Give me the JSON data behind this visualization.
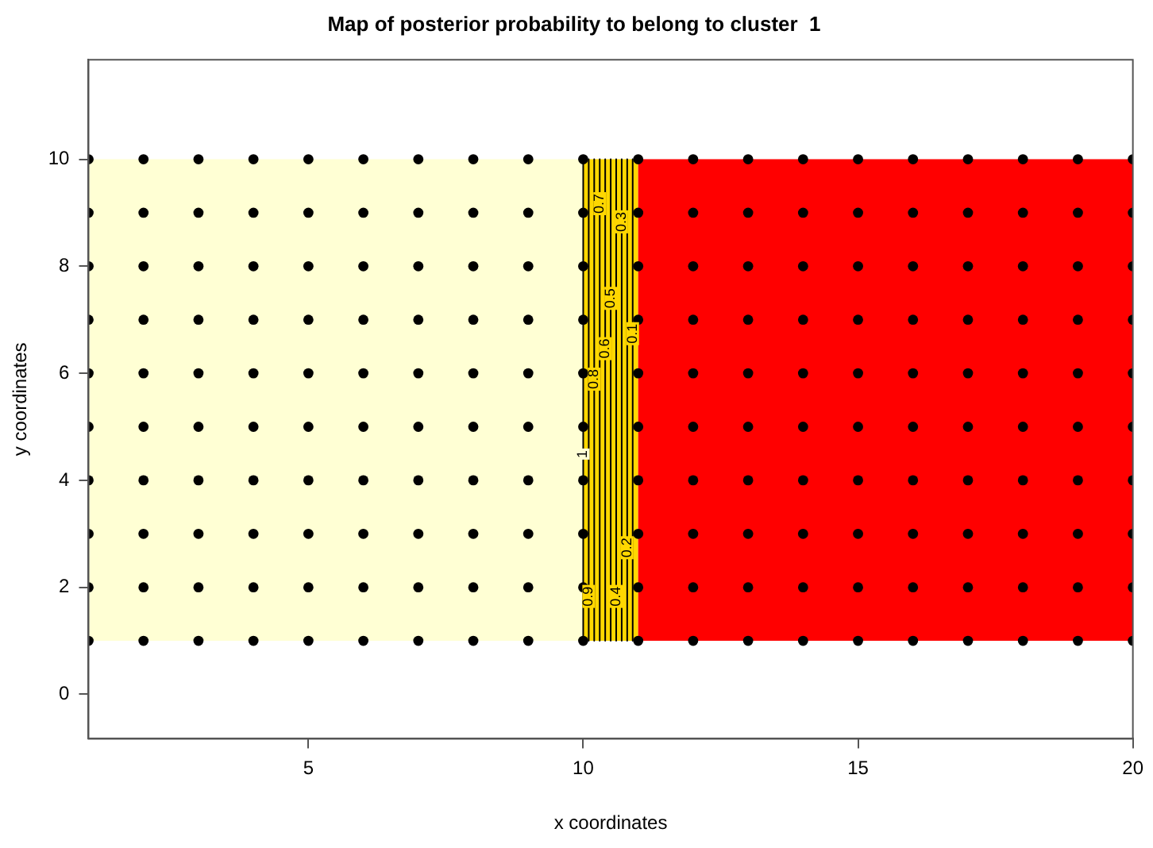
{
  "chart_data": {
    "type": "scatter",
    "title": "Map of posterior probability to belong to cluster  1",
    "xlabel": "x coordinates",
    "ylabel": "y coordinates",
    "xlim": [
      1,
      20
    ],
    "ylim": [
      -0.83,
      11.86
    ],
    "xticks": [
      5,
      10,
      15,
      20
    ],
    "yticks": [
      0,
      2,
      4,
      6,
      8,
      10
    ],
    "grid": false,
    "legend": false,
    "marker": "circle",
    "bands": [
      {
        "axis": "x",
        "from": 1,
        "to": 10,
        "color": "#ffffd4"
      },
      {
        "axis": "x",
        "from": 10,
        "to": 11,
        "color": "#ffd700"
      },
      {
        "axis": "x",
        "from": 11,
        "to": 20,
        "color": "#ff0000"
      }
    ],
    "annotations": [
      {
        "text": "0.7",
        "x": 10.3,
        "y": 9.17
      },
      {
        "text": "0.3",
        "x": 10.7,
        "y": 8.83
      },
      {
        "text": "0.5",
        "x": 10.5,
        "y": 7.4
      },
      {
        "text": "0.1",
        "x": 10.9,
        "y": 6.74
      },
      {
        "text": "0.6",
        "x": 10.4,
        "y": 6.46
      },
      {
        "text": "0.8",
        "x": 10.2,
        "y": 5.89
      },
      {
        "text": "1",
        "x": 10.0,
        "y": 4.49
      },
      {
        "text": "0.2",
        "x": 10.8,
        "y": 2.74
      },
      {
        "text": "0.9",
        "x": 10.1,
        "y": 1.83
      },
      {
        "text": "0.4",
        "x": 10.6,
        "y": 1.83
      }
    ],
    "series": [
      {
        "type": "line",
        "marker": "none",
        "color": "#000000",
        "x": [
          10.0,
          10.0
        ],
        "values": [
          10,
          1
        ]
      },
      {
        "type": "line",
        "marker": "none",
        "color": "#000000",
        "x": [
          10.1,
          10.1
        ],
        "values": [
          10,
          1
        ]
      },
      {
        "type": "line",
        "marker": "none",
        "color": "#000000",
        "x": [
          10.2,
          10.2
        ],
        "values": [
          10,
          1
        ]
      },
      {
        "type": "line",
        "marker": "none",
        "color": "#000000",
        "x": [
          10.3,
          10.3
        ],
        "values": [
          10,
          1
        ]
      },
      {
        "type": "line",
        "marker": "none",
        "color": "#000000",
        "x": [
          10.4,
          10.4
        ],
        "values": [
          10,
          1
        ]
      },
      {
        "type": "line",
        "marker": "none",
        "color": "#000000",
        "x": [
          10.5,
          10.5
        ],
        "values": [
          10,
          1
        ]
      },
      {
        "type": "line",
        "marker": "none",
        "color": "#000000",
        "x": [
          10.6,
          10.6
        ],
        "values": [
          10,
          1
        ]
      },
      {
        "type": "line",
        "marker": "none",
        "color": "#000000",
        "x": [
          10.7,
          10.7
        ],
        "values": [
          10,
          1
        ]
      },
      {
        "type": "line",
        "marker": "none",
        "color": "#000000",
        "x": [
          10.8,
          10.8
        ],
        "values": [
          10,
          1
        ]
      },
      {
        "type": "line",
        "marker": "none",
        "color": "#000000",
        "x": [
          10.9,
          10.9
        ],
        "values": [
          10,
          1
        ]
      },
      {
        "color": "#000000",
        "x": [
          1,
          2,
          3,
          4,
          5,
          6,
          7,
          8,
          9,
          10,
          11,
          12,
          13,
          14,
          15,
          16,
          17,
          18,
          19,
          20,
          1,
          2,
          3,
          4,
          5,
          6,
          7,
          8,
          9,
          10,
          11,
          12,
          13,
          14,
          15,
          16,
          17,
          18,
          19,
          20,
          1,
          2,
          3,
          4,
          5,
          6,
          7,
          8,
          9,
          10,
          11,
          12,
          13,
          14,
          15,
          16,
          17,
          18,
          19,
          20,
          1,
          2,
          3,
          4,
          5,
          6,
          7,
          8,
          9,
          10,
          11,
          12,
          13,
          14,
          15,
          16,
          17,
          18,
          19,
          20,
          1,
          2,
          3,
          4,
          5,
          6,
          7,
          8,
          9,
          10,
          11,
          12,
          13,
          14,
          15,
          16,
          17,
          18,
          19,
          20,
          1,
          2,
          3,
          4,
          5,
          6,
          7,
          8,
          9,
          10,
          11,
          12,
          13,
          14,
          15,
          16,
          17,
          18,
          19,
          20,
          1,
          2,
          3,
          4,
          5,
          6,
          7,
          8,
          9,
          10,
          11,
          12,
          13,
          14,
          15,
          16,
          17,
          18,
          19,
          20,
          1,
          2,
          3,
          4,
          5,
          6,
          7,
          8,
          9,
          10,
          11,
          12,
          13,
          14,
          15,
          16,
          17,
          18,
          19,
          20,
          1,
          2,
          3,
          4,
          5,
          6,
          7,
          8,
          9,
          10,
          11,
          12,
          13,
          14,
          15,
          16,
          17,
          18,
          19,
          20,
          1,
          2,
          3,
          4,
          5,
          6,
          7,
          8,
          9,
          10,
          11,
          12,
          13,
          14,
          15,
          16,
          17,
          18,
          19,
          20
        ],
        "values": [
          1,
          1,
          1,
          1,
          1,
          1,
          1,
          1,
          1,
          1,
          1,
          1,
          1,
          1,
          1,
          1,
          1,
          1,
          1,
          1,
          2,
          2,
          2,
          2,
          2,
          2,
          2,
          2,
          2,
          2,
          2,
          2,
          2,
          2,
          2,
          2,
          2,
          2,
          2,
          2,
          3,
          3,
          3,
          3,
          3,
          3,
          3,
          3,
          3,
          3,
          3,
          3,
          3,
          3,
          3,
          3,
          3,
          3,
          3,
          3,
          4,
          4,
          4,
          4,
          4,
          4,
          4,
          4,
          4,
          4,
          4,
          4,
          4,
          4,
          4,
          4,
          4,
          4,
          4,
          4,
          5,
          5,
          5,
          5,
          5,
          5,
          5,
          5,
          5,
          5,
          5,
          5,
          5,
          5,
          5,
          5,
          5,
          5,
          5,
          5,
          6,
          6,
          6,
          6,
          6,
          6,
          6,
          6,
          6,
          6,
          6,
          6,
          6,
          6,
          6,
          6,
          6,
          6,
          6,
          6,
          7,
          7,
          7,
          7,
          7,
          7,
          7,
          7,
          7,
          7,
          7,
          7,
          7,
          7,
          7,
          7,
          7,
          7,
          7,
          7,
          8,
          8,
          8,
          8,
          8,
          8,
          8,
          8,
          8,
          8,
          8,
          8,
          8,
          8,
          8,
          8,
          8,
          8,
          8,
          8,
          9,
          9,
          9,
          9,
          9,
          9,
          9,
          9,
          9,
          9,
          9,
          9,
          9,
          9,
          9,
          9,
          9,
          9,
          9,
          9,
          10,
          10,
          10,
          10,
          10,
          10,
          10,
          10,
          10,
          10,
          10,
          10,
          10,
          10,
          10,
          10,
          10,
          10,
          10,
          10
        ]
      }
    ]
  }
}
